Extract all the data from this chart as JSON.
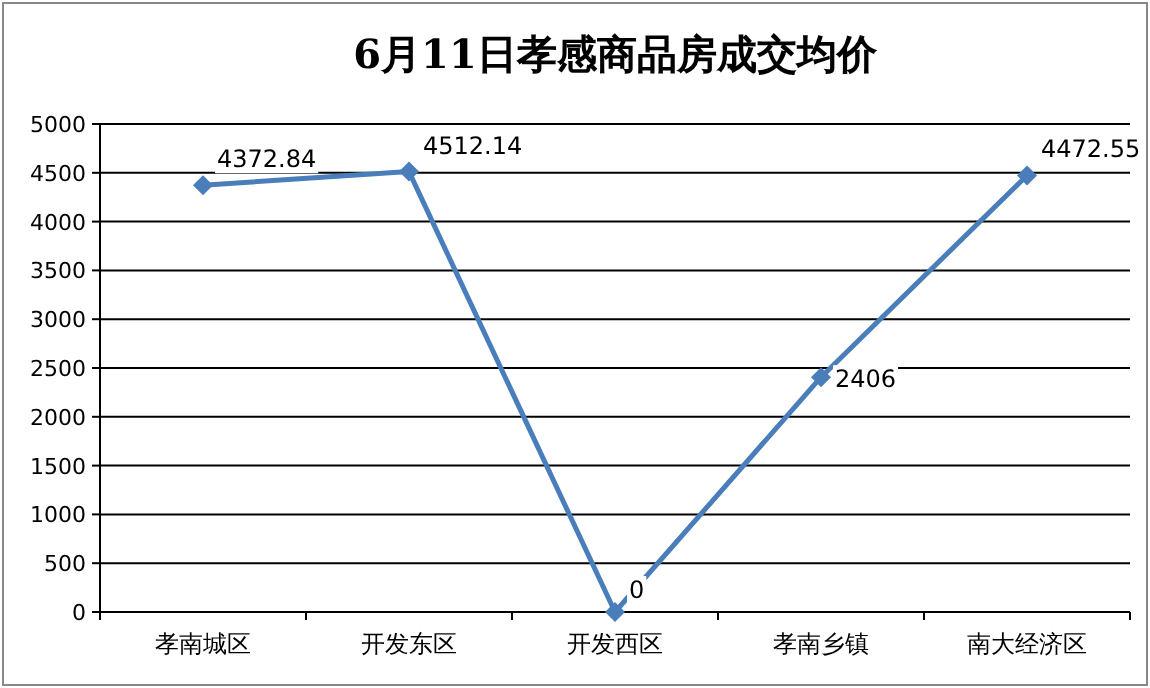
{
  "chart_data": {
    "type": "line",
    "title": "6月11日孝感商品房成交均价",
    "categories": [
      "孝南城区",
      "开发东区",
      "开发西区",
      "孝南乡镇",
      "南大经济区"
    ],
    "series": [
      {
        "color": "#4a7ebb",
        "values": [
          4372.84,
          4512.14,
          0,
          2406,
          4472.55
        ]
      }
    ],
    "ylim": [
      0,
      5000
    ],
    "yticks": [
      0,
      500,
      1000,
      1500,
      2000,
      2500,
      3000,
      3500,
      4000,
      4500,
      5000
    ],
    "grid": "y",
    "marker": "diamond",
    "line_style": "solid",
    "data_labels": true
  }
}
